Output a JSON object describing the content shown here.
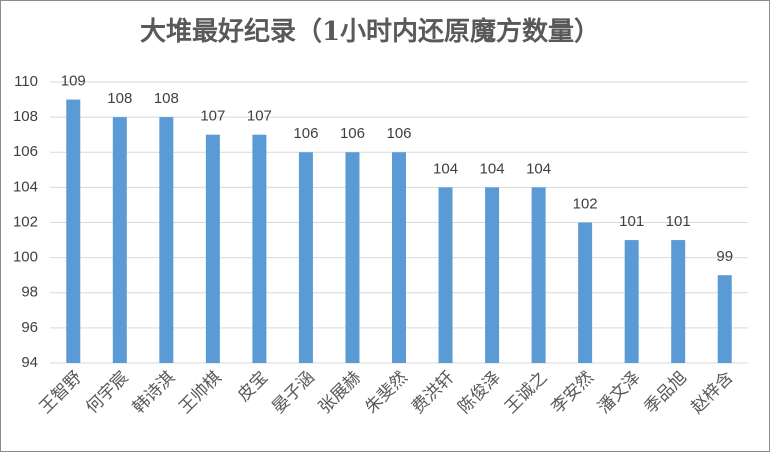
{
  "chart_data": {
    "type": "bar",
    "title": "大堆最好纪录（1小时内还原魔方数量）",
    "categories": [
      "王智野",
      "何宇宸",
      "韩诗淇",
      "王帅棋",
      "皮宝",
      "晏子涵",
      "张展赫",
      "朱斐然",
      "费洪轩",
      "陈俊泽",
      "王诚之",
      "李安然",
      "潘文泽",
      "季品旭",
      "赵梓含"
    ],
    "values": [
      109,
      108,
      108,
      107,
      107,
      106,
      106,
      106,
      104,
      104,
      104,
      102,
      101,
      101,
      99
    ],
    "color": "#5b9bd5",
    "ylim": [
      94,
      110
    ],
    "yticks": [
      94,
      96,
      98,
      100,
      102,
      104,
      106,
      108,
      110
    ],
    "grid": true
  }
}
